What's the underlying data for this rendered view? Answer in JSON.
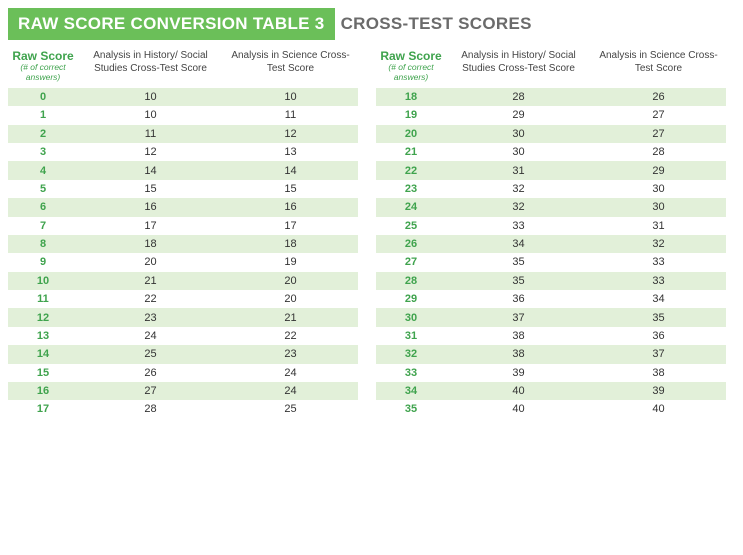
{
  "title": {
    "badge": "RAW SCORE CONVERSION TABLE 3",
    "rest": "CROSS-TEST SCORES"
  },
  "colors": {
    "badge_bg": "#6bbf59",
    "badge_text": "#ffffff",
    "title_rest": "#6b6b6b",
    "raw_accent": "#3fa34d",
    "row_even_bg": "#e2f0d9",
    "row_odd_bg": "#ffffff",
    "cell_text": "#333333",
    "header_text": "#444444"
  },
  "typography": {
    "title_fontsize": 17,
    "header_fontsize": 10,
    "cell_fontsize": 11,
    "raw_main_fontsize": 12,
    "raw_sub_fontsize": 8.5
  },
  "headers": {
    "raw_main": "Raw Score",
    "raw_sub": "(# of correct answers)",
    "hist": "Analysis in History/\nSocial Studies\nCross-Test Score",
    "sci": "Analysis in Science\nCross-Test Score"
  },
  "left": {
    "rows": [
      {
        "raw": "0",
        "hist": "10",
        "sci": "10"
      },
      {
        "raw": "1",
        "hist": "10",
        "sci": "11"
      },
      {
        "raw": "2",
        "hist": "11",
        "sci": "12"
      },
      {
        "raw": "3",
        "hist": "12",
        "sci": "13"
      },
      {
        "raw": "4",
        "hist": "14",
        "sci": "14"
      },
      {
        "raw": "5",
        "hist": "15",
        "sci": "15"
      },
      {
        "raw": "6",
        "hist": "16",
        "sci": "16"
      },
      {
        "raw": "7",
        "hist": "17",
        "sci": "17"
      },
      {
        "raw": "8",
        "hist": "18",
        "sci": "18"
      },
      {
        "raw": "9",
        "hist": "20",
        "sci": "19"
      },
      {
        "raw": "10",
        "hist": "21",
        "sci": "20"
      },
      {
        "raw": "11",
        "hist": "22",
        "sci": "20"
      },
      {
        "raw": "12",
        "hist": "23",
        "sci": "21"
      },
      {
        "raw": "13",
        "hist": "24",
        "sci": "22"
      },
      {
        "raw": "14",
        "hist": "25",
        "sci": "23"
      },
      {
        "raw": "15",
        "hist": "26",
        "sci": "24"
      },
      {
        "raw": "16",
        "hist": "27",
        "sci": "24"
      },
      {
        "raw": "17",
        "hist": "28",
        "sci": "25"
      }
    ]
  },
  "right": {
    "rows": [
      {
        "raw": "18",
        "hist": "28",
        "sci": "26"
      },
      {
        "raw": "19",
        "hist": "29",
        "sci": "27"
      },
      {
        "raw": "20",
        "hist": "30",
        "sci": "27"
      },
      {
        "raw": "21",
        "hist": "30",
        "sci": "28"
      },
      {
        "raw": "22",
        "hist": "31",
        "sci": "29"
      },
      {
        "raw": "23",
        "hist": "32",
        "sci": "30"
      },
      {
        "raw": "24",
        "hist": "32",
        "sci": "30"
      },
      {
        "raw": "25",
        "hist": "33",
        "sci": "31"
      },
      {
        "raw": "26",
        "hist": "34",
        "sci": "32"
      },
      {
        "raw": "27",
        "hist": "35",
        "sci": "33"
      },
      {
        "raw": "28",
        "hist": "35",
        "sci": "33"
      },
      {
        "raw": "29",
        "hist": "36",
        "sci": "34"
      },
      {
        "raw": "30",
        "hist": "37",
        "sci": "35"
      },
      {
        "raw": "31",
        "hist": "38",
        "sci": "36"
      },
      {
        "raw": "32",
        "hist": "38",
        "sci": "37"
      },
      {
        "raw": "33",
        "hist": "39",
        "sci": "38"
      },
      {
        "raw": "34",
        "hist": "40",
        "sci": "39"
      },
      {
        "raw": "35",
        "hist": "40",
        "sci": "40"
      }
    ]
  }
}
